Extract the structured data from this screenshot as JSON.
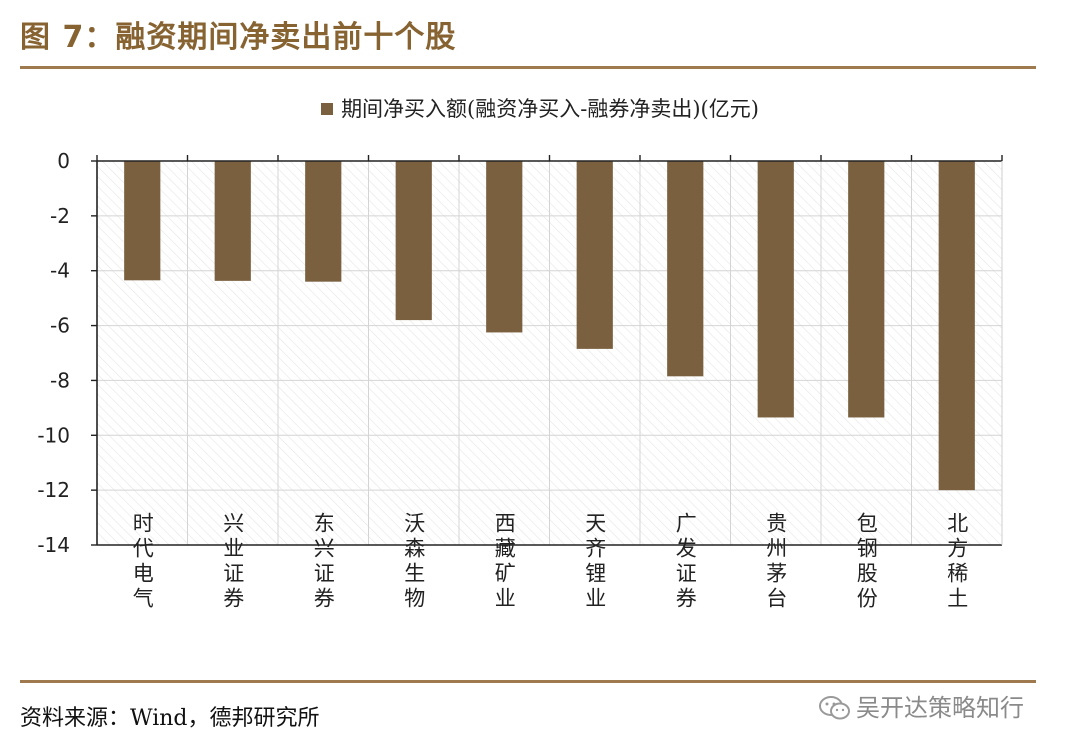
{
  "figure": {
    "title": "图 7：融资期间净卖出前十个股",
    "source": "资料来源：Wind，德邦研究所",
    "watermark": "吴开达策略知行",
    "watermark_icon": "wechat-icon"
  },
  "colors": {
    "accent": "#876332",
    "bar": "#7b6040",
    "rule": "#a07a4f"
  },
  "chart_data": {
    "type": "bar",
    "title": "",
    "xlabel": "",
    "ylabel": "",
    "legend": "top",
    "grid": true,
    "ylim": [
      -14,
      0
    ],
    "yticks": [
      0,
      -2,
      -4,
      -6,
      -8,
      -10,
      -12,
      -14
    ],
    "categories": [
      "时代电气",
      "兴业证券",
      "东兴证券",
      "沃森生物",
      "西藏矿业",
      "天齐锂业",
      "广发证券",
      "贵州茅台",
      "包钢股份",
      "北方稀土"
    ],
    "series": [
      {
        "name": "期间净买入额(融资净买入-融券净卖出)(亿元)",
        "values": [
          -4.35,
          -4.37,
          -4.4,
          -5.8,
          -6.25,
          -6.85,
          -7.85,
          -9.35,
          -9.35,
          -12.0
        ]
      }
    ]
  }
}
